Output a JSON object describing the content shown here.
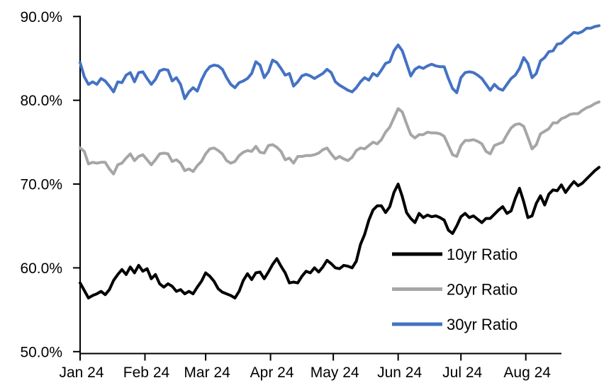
{
  "colors": {
    "background": "#ffffff",
    "axis": "#000000",
    "tick_label": "#000000",
    "series_10yr": "#000000",
    "series_20yr": "#a6a6a6",
    "series_30yr": "#4472c4"
  },
  "chart_data": {
    "type": "line",
    "title": "",
    "xlabel": "",
    "ylabel": "",
    "grid": false,
    "x_axis": {
      "unit": "days_since_jan1_2024",
      "domain_days": [
        0,
        248
      ],
      "tick_days": [
        0,
        31,
        60,
        91,
        121,
        152,
        182,
        213
      ],
      "tick_labels": [
        "Jan 24",
        "Feb 24",
        "Mar 24",
        "Apr 24",
        "May 24",
        "Jun 24",
        "Jul 24",
        "Aug 24"
      ]
    },
    "y_axis": {
      "range": [
        50,
        90
      ],
      "ticks": [
        90,
        80,
        70,
        60,
        50
      ],
      "tick_labels": [
        "90.0%",
        "80.0%",
        "70.0%",
        "60.0%",
        "50.0%"
      ]
    },
    "legend": {
      "position": "inside-bottom-right",
      "entries": [
        {
          "name": "10yr Ratio",
          "color": "#000000"
        },
        {
          "name": "20yr Ratio",
          "color": "#a6a6a6"
        },
        {
          "name": "30yr Ratio",
          "color": "#4472c4"
        }
      ]
    },
    "sample_interval_days": 2,
    "series": [
      {
        "name": "10yr Ratio",
        "color": "#000000",
        "values": [
          58.2,
          57.3,
          56.4,
          56.7,
          56.9,
          57.2,
          56.8,
          57.4,
          58.5,
          59.2,
          59.8,
          59.2,
          60.1,
          59.4,
          60.3,
          59.6,
          59.9,
          58.7,
          59.2,
          58.1,
          57.7,
          58.1,
          57.8,
          57.2,
          57.4,
          56.9,
          57.2,
          56.9,
          57.7,
          58.4,
          59.4,
          59.0,
          58.4,
          57.5,
          57.1,
          56.9,
          56.7,
          56.4,
          57.2,
          58.5,
          59.3,
          58.6,
          59.4,
          59.5,
          58.7,
          59.5,
          60.4,
          61.1,
          60.2,
          59.4,
          58.2,
          58.3,
          58.2,
          59.0,
          59.6,
          59.4,
          60.0,
          59.5,
          60.1,
          60.9,
          60.5,
          60.0,
          59.9,
          60.3,
          60.2,
          60.0,
          60.8,
          62.8,
          64.0,
          65.7,
          66.9,
          67.4,
          67.4,
          66.6,
          67.3,
          69.0,
          70.0,
          68.5,
          66.6,
          65.9,
          65.4,
          66.5,
          66.0,
          66.3,
          66.1,
          66.2,
          66.0,
          65.7,
          64.5,
          64.1,
          65.0,
          66.1,
          66.5,
          66.0,
          66.2,
          65.8,
          65.4,
          65.9,
          65.9,
          66.4,
          66.9,
          67.3,
          66.5,
          66.8,
          68.3,
          69.5,
          67.9,
          66.0,
          66.2,
          67.7,
          68.6,
          67.5,
          68.8,
          69.3,
          69.2,
          69.9,
          69.0,
          69.7,
          70.3,
          69.8,
          70.1,
          70.6,
          71.1,
          71.6,
          72.0
        ]
      },
      {
        "name": "20yr Ratio",
        "color": "#a6a6a6",
        "values": [
          74.3,
          73.9,
          72.4,
          72.6,
          72.5,
          72.6,
          72.6,
          71.8,
          71.2,
          72.3,
          72.5,
          73.1,
          73.6,
          72.8,
          73.3,
          73.5,
          72.9,
          72.3,
          72.9,
          73.6,
          73.7,
          73.6,
          72.7,
          72.9,
          72.5,
          71.6,
          71.8,
          71.5,
          72.2,
          72.7,
          73.6,
          74.2,
          74.3,
          74.0,
          73.6,
          72.8,
          72.5,
          72.7,
          73.4,
          73.8,
          74.0,
          73.9,
          74.5,
          73.8,
          73.7,
          74.6,
          74.7,
          74.4,
          73.9,
          72.9,
          73.1,
          72.5,
          73.3,
          73.3,
          73.4,
          73.4,
          73.5,
          73.7,
          74.1,
          74.3,
          73.6,
          73.0,
          73.3,
          73.0,
          72.8,
          73.2,
          74.0,
          74.3,
          74.2,
          74.6,
          75.0,
          74.8,
          75.3,
          76.2,
          76.8,
          77.9,
          79.0,
          78.6,
          77.2,
          75.9,
          75.5,
          75.9,
          75.9,
          76.2,
          76.1,
          76.1,
          76.0,
          75.7,
          74.6,
          73.5,
          73.3,
          74.6,
          75.2,
          75.2,
          75.3,
          75.1,
          74.8,
          73.9,
          73.6,
          74.6,
          74.8,
          75.0,
          75.9,
          76.7,
          77.1,
          77.2,
          76.9,
          75.6,
          74.2,
          74.7,
          76.0,
          76.3,
          76.6,
          77.3,
          77.3,
          77.8,
          78.0,
          78.3,
          78.4,
          78.4,
          78.8,
          79.1,
          79.3,
          79.6,
          79.8
        ]
      },
      {
        "name": "30yr Ratio",
        "color": "#4472c4",
        "values": [
          84.5,
          82.8,
          81.9,
          82.2,
          81.9,
          82.6,
          82.3,
          81.7,
          81.0,
          82.2,
          82.1,
          83.0,
          83.3,
          82.2,
          83.3,
          83.4,
          82.6,
          81.9,
          82.5,
          83.5,
          83.7,
          83.6,
          82.3,
          82.7,
          81.9,
          80.2,
          81.0,
          81.5,
          81.1,
          82.4,
          83.4,
          84.0,
          84.2,
          84.1,
          83.7,
          82.7,
          81.9,
          81.5,
          82.1,
          82.3,
          82.6,
          83.2,
          84.6,
          84.2,
          82.7,
          83.4,
          84.8,
          84.5,
          83.8,
          83.0,
          83.2,
          81.7,
          82.2,
          82.9,
          83.1,
          82.9,
          82.6,
          82.9,
          83.2,
          83.7,
          83.3,
          82.2,
          81.8,
          81.5,
          81.2,
          81.0,
          81.5,
          82.2,
          82.7,
          82.4,
          83.2,
          82.9,
          83.6,
          84.4,
          84.6,
          85.9,
          86.6,
          85.9,
          84.4,
          82.9,
          83.7,
          84.0,
          83.8,
          84.1,
          84.3,
          84.1,
          84.0,
          84.0,
          82.6,
          81.4,
          80.9,
          82.7,
          83.3,
          83.4,
          83.3,
          83.0,
          82.6,
          81.9,
          81.2,
          81.9,
          81.4,
          81.2,
          81.9,
          82.6,
          83.0,
          83.8,
          85.1,
          84.4,
          82.7,
          83.2,
          84.7,
          85.1,
          85.8,
          85.9,
          86.7,
          86.8,
          87.3,
          87.7,
          88.1,
          88.0,
          88.2,
          88.6,
          88.6,
          88.8,
          88.9
        ]
      }
    ]
  }
}
